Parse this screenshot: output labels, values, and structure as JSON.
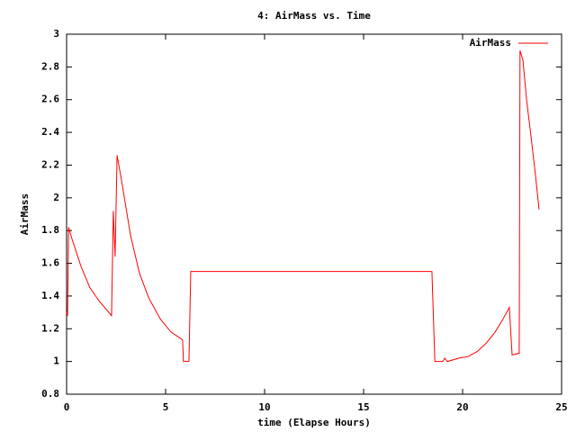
{
  "chart_data": {
    "type": "line",
    "title": "4: AirMass vs. Time",
    "x_label": "time (Elapse Hours)",
    "y_label": "AirMass",
    "x": [
      0,
      0.05,
      0.1,
      0.27,
      0.73,
      1.18,
      1.64,
      2.27,
      2.36,
      2.45,
      2.55,
      2.77,
      3.0,
      3.23,
      3.68,
      4.14,
      4.73,
      5.27,
      5.77,
      5.86,
      5.9,
      6.18,
      6.27,
      18.45,
      18.6,
      19.0,
      19.1,
      19.23,
      19.8,
      20.27,
      20.73,
      21.18,
      21.64,
      22.0,
      22.36,
      22.5,
      22.86,
      22.9,
      23.05,
      23.23,
      23.45,
      23.68,
      23.86
    ],
    "series": [
      {
        "name": "AirMass",
        "color": "#ff0000",
        "values": [
          1.3,
          1.28,
          1.82,
          1.75,
          1.58,
          1.45,
          1.37,
          1.28,
          1.92,
          1.64,
          2.26,
          2.11,
          1.94,
          1.77,
          1.54,
          1.39,
          1.26,
          1.18,
          1.14,
          1.13,
          1.0,
          1.0,
          1.55,
          1.55,
          1.0,
          1.0,
          1.02,
          1.0,
          1.02,
          1.03,
          1.06,
          1.11,
          1.18,
          1.25,
          1.33,
          1.04,
          1.05,
          2.9,
          2.84,
          2.6,
          2.38,
          2.14,
          1.93
        ]
      }
    ],
    "xlim": [
      0,
      25
    ],
    "ylim": [
      0.8,
      3
    ],
    "xticks": [
      0,
      5,
      10,
      15,
      20,
      25
    ],
    "yticks": [
      0.8,
      1,
      1.2,
      1.4,
      1.6,
      1.8,
      2,
      2.2,
      2.4,
      2.6,
      2.8,
      3
    ],
    "legend": "top-right"
  }
}
